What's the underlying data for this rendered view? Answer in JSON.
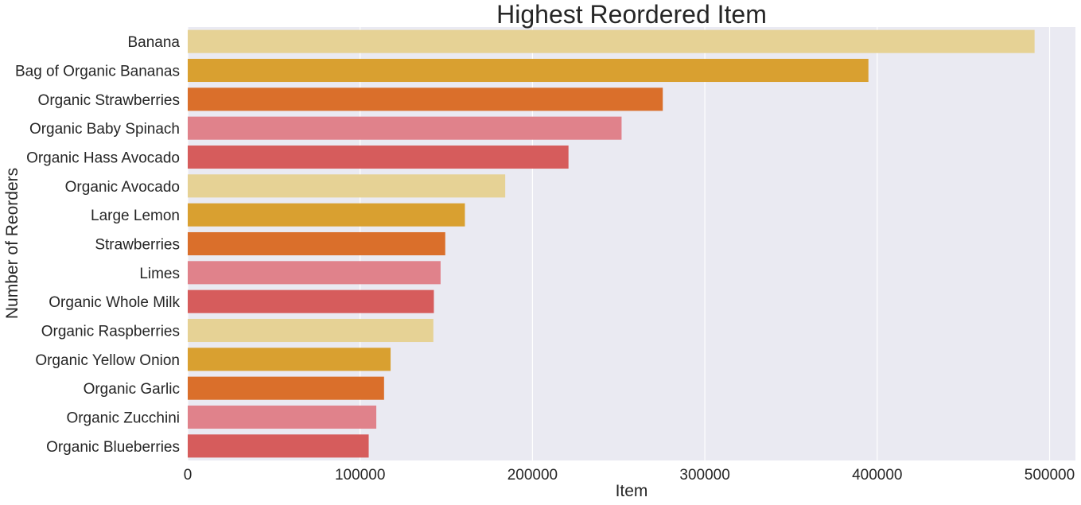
{
  "chart_data": {
    "type": "bar",
    "orientation": "horizontal",
    "title": "Highest Reordered Item",
    "xlabel": "Item",
    "ylabel": "Number of Reorders",
    "xlim": [
      0,
      515000
    ],
    "xticks": [
      0,
      100000,
      200000,
      300000,
      400000,
      500000
    ],
    "grid": true,
    "background": "#eaeaf2",
    "categories": [
      "Banana",
      "Bag of Organic Bananas",
      "Organic Strawberries",
      "Organic Baby Spinach",
      "Organic Hass Avocado",
      "Organic Avocado",
      "Large Lemon",
      "Strawberries",
      "Limes",
      "Organic Whole Milk",
      "Organic Raspberries",
      "Organic Yellow Onion",
      "Organic Garlic",
      "Organic Zucchini",
      "Organic Blueberries"
    ],
    "values": [
      491300,
      394900,
      275600,
      251700,
      220900,
      184200,
      160800,
      149400,
      146700,
      142800,
      142500,
      117700,
      113900,
      109400,
      105000
    ],
    "colors": [
      "#e6d295",
      "#d9a030",
      "#da6f2b",
      "#e0828b",
      "#d65c5c"
    ]
  }
}
